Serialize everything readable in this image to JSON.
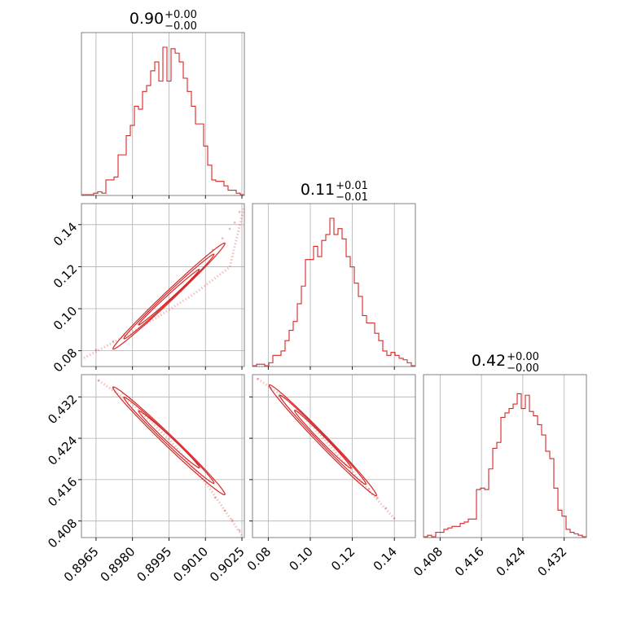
{
  "chart_data": {
    "type": "corner",
    "color": "#d62728",
    "grid": true,
    "parameters": [
      {
        "id": "p0",
        "range": [
          0.8959,
          0.9026
        ],
        "ticks": [
          0.8965,
          0.898,
          0.8995,
          0.901,
          0.9025
        ],
        "tick_labels": [
          "0.8965",
          "0.8980",
          "0.8995",
          "0.9010",
          "0.9025"
        ],
        "title": {
          "median": "0.90",
          "plus": "+0.00",
          "minus": "−0.00"
        },
        "hist": [
          0.0,
          0.0,
          0.0,
          0.01,
          0.02,
          0.01,
          0.1,
          0.1,
          0.12,
          0.27,
          0.27,
          0.4,
          0.47,
          0.6,
          0.58,
          0.7,
          0.74,
          0.84,
          0.9,
          0.77,
          1.0,
          0.77,
          0.99,
          0.96,
          0.9,
          0.79,
          0.7,
          0.6,
          0.48,
          0.48,
          0.33,
          0.2,
          0.1,
          0.09,
          0.09,
          0.06,
          0.03,
          0.03,
          0.01,
          0.0
        ]
      },
      {
        "id": "p1",
        "range": [
          0.0725,
          0.15
        ],
        "ticks": [
          0.08,
          0.1,
          0.12,
          0.14
        ],
        "tick_labels": [
          "0.08",
          "0.10",
          "0.12",
          "0.14"
        ],
        "title": {
          "median": "0.11",
          "plus": "+0.01",
          "minus": "−0.01"
        },
        "hist": [
          0.0,
          0.01,
          0.01,
          0.0,
          0.02,
          0.07,
          0.07,
          0.1,
          0.17,
          0.24,
          0.3,
          0.42,
          0.54,
          0.72,
          0.72,
          0.81,
          0.74,
          0.85,
          0.89,
          1.0,
          0.89,
          0.93,
          0.86,
          0.74,
          0.67,
          0.56,
          0.47,
          0.34,
          0.29,
          0.29,
          0.22,
          0.17,
          0.1,
          0.07,
          0.09,
          0.07,
          0.05,
          0.04,
          0.02,
          0.0
        ]
      },
      {
        "id": "p2",
        "range": [
          0.4048,
          0.4363
        ],
        "ticks": [
          0.408,
          0.416,
          0.424,
          0.432
        ],
        "tick_labels": [
          "0.408",
          "0.416",
          "0.424",
          "0.432"
        ],
        "title": {
          "median": "0.42",
          "plus": "+0.00",
          "minus": "−0.00"
        },
        "hist": [
          0.0,
          0.01,
          0.0,
          0.03,
          0.03,
          0.05,
          0.06,
          0.07,
          0.07,
          0.09,
          0.1,
          0.12,
          0.12,
          0.32,
          0.33,
          0.32,
          0.46,
          0.6,
          0.64,
          0.81,
          0.84,
          0.87,
          0.9,
          0.97,
          0.87,
          0.96,
          0.85,
          0.82,
          0.76,
          0.69,
          0.58,
          0.53,
          0.33,
          0.18,
          0.14,
          0.05,
          0.03,
          0.02,
          0.01,
          0.0
        ]
      }
    ],
    "pairs": [
      {
        "x": "p0",
        "y": "p1",
        "trend": [
          [
            0.896,
            0.0765
          ],
          [
            0.8975,
            0.0858
          ],
          [
            0.899,
            0.0958
          ],
          [
            0.9005,
            0.1068
          ],
          [
            0.902,
            0.1198
          ],
          [
            0.9026,
            0.1488
          ]
        ],
        "contour_levels": [
          {
            "center": [
              0.8995,
              0.1055
            ],
            "semi_major": [
              0.00125,
              0.0132
            ],
            "semi_minor": [
              6e-05,
              -0.0008
            ]
          },
          {
            "center": [
              0.8995,
              0.1058
            ],
            "semi_major": [
              0.00185,
              0.0201
            ],
            "semi_minor": [
              0.0001,
              -0.0012
            ]
          },
          {
            "center": [
              0.8995,
              0.106
            ],
            "semi_major": [
              0.0023,
              0.0252
            ],
            "semi_minor": [
              0.00014,
              -0.0016
            ]
          }
        ],
        "outliers": [
          [
            0.8965,
            0.0805
          ],
          [
            0.8972,
            0.0845
          ],
          [
            0.8977,
            0.087
          ],
          [
            0.9013,
            0.128
          ],
          [
            0.9017,
            0.1335
          ],
          [
            0.902,
            0.138
          ],
          [
            0.9022,
            0.141
          ],
          [
            0.9024,
            0.146
          ]
        ]
      },
      {
        "x": "p0",
        "y": "p2",
        "trend": [
          [
            0.8966,
            0.4352
          ],
          [
            0.898,
            0.4307
          ],
          [
            0.8995,
            0.4238
          ],
          [
            0.901,
            0.4155
          ],
          [
            0.9025,
            0.4052
          ]
        ],
        "contour_levels": [
          {
            "center": [
              0.8995,
              0.4238
            ],
            "semi_major": [
              0.00125,
              -0.0055
            ],
            "semi_minor": [
              -8e-05,
              -0.0004
            ]
          },
          {
            "center": [
              0.8995,
              0.4236
            ],
            "semi_major": [
              0.00185,
              -0.0083
            ],
            "semi_minor": [
              -0.0001,
              -0.0006
            ]
          },
          {
            "center": [
              0.8995,
              0.4235
            ],
            "semi_major": [
              0.0023,
              -0.0104
            ],
            "semi_minor": [
              -0.00014,
              -0.0008
            ]
          }
        ],
        "outliers": [
          [
            0.8966,
            0.4352
          ],
          [
            0.8972,
            0.4338
          ],
          [
            0.8976,
            0.4327
          ],
          [
            0.9014,
            0.4125
          ],
          [
            0.9018,
            0.41
          ],
          [
            0.9021,
            0.4082
          ],
          [
            0.9024,
            0.4062
          ]
        ]
      },
      {
        "x": "p1",
        "y": "p2",
        "trend": [
          [
            0.075,
            0.4355
          ],
          [
            0.09,
            0.4312
          ],
          [
            0.105,
            0.4246
          ],
          [
            0.12,
            0.4175
          ],
          [
            0.135,
            0.4107
          ],
          [
            0.14,
            0.4085
          ]
        ],
        "contour_levels": [
          {
            "center": [
              0.106,
              0.4238
            ],
            "semi_major": [
              0.0135,
              -0.0056
            ],
            "semi_minor": [
              -0.0008,
              -0.0004
            ]
          },
          {
            "center": [
              0.106,
              0.4237
            ],
            "semi_major": [
              0.0205,
              -0.0086
            ],
            "semi_minor": [
              -0.0011,
              -0.0006
            ]
          },
          {
            "center": [
              0.106,
              0.4236
            ],
            "semi_major": [
              0.0255,
              -0.0107
            ],
            "semi_minor": [
              -0.0015,
              -0.0008
            ]
          }
        ],
        "outliers": [
          [
            0.075,
            0.4355
          ],
          [
            0.081,
            0.4338
          ],
          [
            0.085,
            0.4322
          ],
          [
            0.128,
            0.4142
          ],
          [
            0.132,
            0.4125
          ],
          [
            0.136,
            0.4105
          ],
          [
            0.14,
            0.4085
          ]
        ]
      }
    ]
  }
}
